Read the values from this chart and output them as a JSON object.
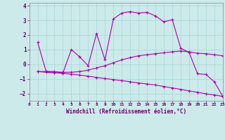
{
  "xlabel": "Windchill (Refroidissement éolien,°C)",
  "background_color": "#cceaea",
  "grid_color": "#aad4d4",
  "line_color": "#aa00aa",
  "xlim": [
    0,
    23
  ],
  "ylim": [
    -2.5,
    4.2
  ],
  "yticks": [
    -2,
    -1,
    0,
    1,
    2,
    3,
    4
  ],
  "xticks": [
    0,
    1,
    2,
    3,
    4,
    5,
    6,
    7,
    8,
    9,
    10,
    11,
    12,
    13,
    14,
    15,
    16,
    17,
    18,
    19,
    20,
    21,
    22,
    23
  ],
  "series1_x": [
    1,
    2,
    3,
    4,
    5,
    6,
    7,
    8,
    9,
    10,
    11,
    12,
    13,
    14,
    15,
    16,
    17,
    18,
    19,
    20,
    21,
    22,
    23
  ],
  "series1_y": [
    1.5,
    -0.5,
    -0.5,
    -0.6,
    1.0,
    0.5,
    -0.1,
    2.1,
    0.3,
    3.1,
    3.5,
    3.6,
    3.5,
    3.55,
    3.3,
    2.9,
    3.05,
    1.1,
    0.8,
    -0.65,
    -0.7,
    -1.2,
    -2.2
  ],
  "series2_x": [
    1,
    2,
    3,
    4,
    5,
    6,
    7,
    8,
    9,
    10,
    11,
    12,
    13,
    14,
    15,
    16,
    17,
    18,
    19,
    20,
    21,
    22,
    23
  ],
  "series2_y": [
    -0.5,
    -0.5,
    -0.52,
    -0.55,
    -0.55,
    -0.5,
    -0.4,
    -0.25,
    -0.1,
    0.1,
    0.3,
    0.45,
    0.58,
    0.65,
    0.72,
    0.78,
    0.85,
    0.9,
    0.85,
    0.75,
    0.72,
    0.65,
    0.58
  ],
  "series3_x": [
    1,
    2,
    3,
    4,
    5,
    6,
    7,
    8,
    9,
    10,
    11,
    12,
    13,
    14,
    15,
    16,
    17,
    18,
    19,
    20,
    21,
    22,
    23
  ],
  "series3_y": [
    -0.5,
    -0.55,
    -0.58,
    -0.62,
    -0.68,
    -0.74,
    -0.82,
    -0.9,
    -0.98,
    -1.05,
    -1.12,
    -1.2,
    -1.28,
    -1.35,
    -1.42,
    -1.52,
    -1.62,
    -1.72,
    -1.82,
    -1.92,
    -2.02,
    -2.1,
    -2.2
  ]
}
